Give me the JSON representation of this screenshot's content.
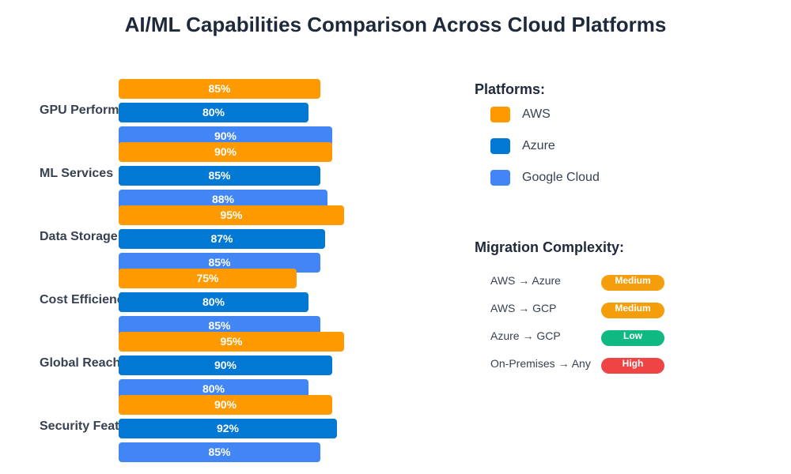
{
  "chart_data": {
    "type": "bar",
    "orientation": "horizontal",
    "title": "AI/ML Capabilities Comparison Across Cloud Platforms",
    "categories": [
      "GPU Performance",
      "ML Services",
      "Data Storage",
      "Cost Efficiency",
      "Global Reach",
      "Security Features"
    ],
    "xlim": [
      0,
      100
    ],
    "unit": "%",
    "series": [
      {
        "name": "AWS",
        "color": "#FF9900",
        "values": [
          85,
          90,
          95,
          75,
          95,
          90
        ]
      },
      {
        "name": "Azure",
        "color": "#0078D4",
        "values": [
          80,
          85,
          87,
          80,
          90,
          92
        ]
      },
      {
        "name": "Google Cloud",
        "color": "#4285F4",
        "values": [
          90,
          88,
          85,
          85,
          80,
          85
        ]
      }
    ],
    "legend_placement": "right",
    "grid": false
  },
  "legend": {
    "title": "Platforms:"
  },
  "migration": {
    "title": "Migration Complexity:",
    "items": [
      {
        "route": "AWS → Azure",
        "level": "Medium",
        "color": "#F59E0B"
      },
      {
        "route": "AWS → GCP",
        "level": "Medium",
        "color": "#F59E0B"
      },
      {
        "route": "Azure → GCP",
        "level": "Low",
        "color": "#10B981"
      },
      {
        "route": "On-Premises → Any",
        "level": "High",
        "color": "#EF4444"
      }
    ]
  }
}
